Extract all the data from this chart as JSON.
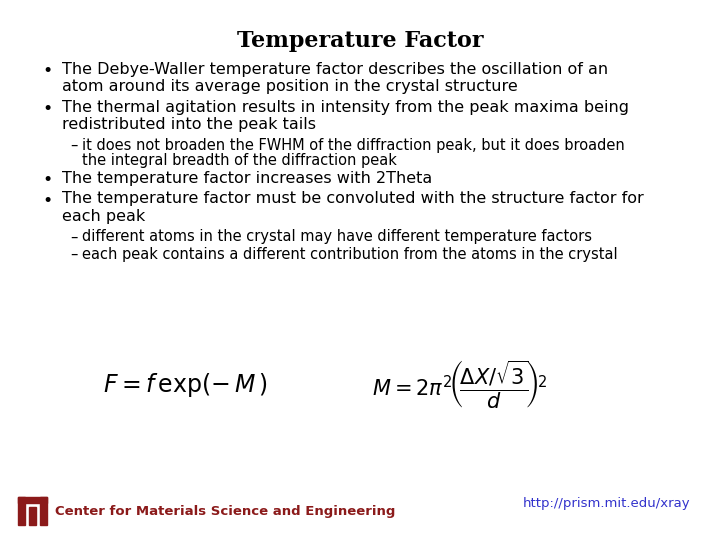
{
  "title": "Temperature Factor",
  "background_color": "#ffffff",
  "title_fontsize": 16,
  "title_fontweight": "bold",
  "bullet_points": [
    {
      "level": 0,
      "text": "The Debye-Waller temperature factor describes the oscillation of an\natom around its average position in the crystal structure"
    },
    {
      "level": 0,
      "text": "The thermal agitation results in intensity from the peak maxima being\nredistributed into the peak tails"
    },
    {
      "level": 1,
      "text": "it does not broaden the FWHM of the diffraction peak, but it does broaden\nthe integral breadth of the diffraction peak"
    },
    {
      "level": 0,
      "text": "The temperature factor increases with 2Theta"
    },
    {
      "level": 0,
      "text": "The temperature factor must be convoluted with the structure factor for\neach peak"
    },
    {
      "level": 1,
      "text": "different atoms in the crystal may have different temperature factors"
    },
    {
      "level": 1,
      "text": "each peak contains a different contribution from the atoms in the crystal"
    }
  ],
  "formula1": "$F = f\\,\\mathrm{exp}(-\\,M\\,)$",
  "formula2": "$M = 2\\pi^2\\!\\left(\\!\\dfrac{\\Delta X/\\sqrt{3}}{d}\\!\\right)^{\\!2}$",
  "footer_text": "Center for Materials Science and Engineering",
  "footer_url": "http://prism.mit.edu/xray",
  "footer_color": "#8b1a1a",
  "url_color": "#3333cc",
  "bullet_color": "#000000",
  "sub_bullet_color": "#000000",
  "bullet_fontsize": 11.5,
  "sub_bullet_fontsize": 10.5,
  "formula_fontsize": 15,
  "footer_fontsize": 9.5
}
